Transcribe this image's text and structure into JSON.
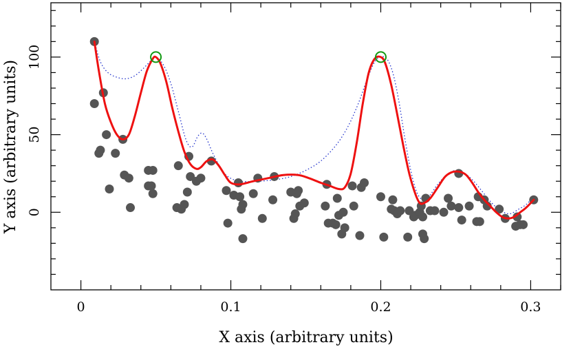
{
  "chart_data": {
    "type": "scatter",
    "title": "",
    "xlabel": "X axis (arbitrary units)",
    "ylabel": "Y axis (arbitrary units)",
    "xlim": [
      -0.02,
      0.32
    ],
    "ylim": [
      -50,
      135
    ],
    "xticks": [
      0,
      0.1,
      0.2,
      0.3
    ],
    "xtick_labels": [
      "0",
      "0.1",
      "0.2",
      "0.3"
    ],
    "yticks": [
      0,
      50,
      100
    ],
    "ytick_labels": [
      "0",
      "50",
      "100"
    ],
    "grid": false,
    "colors": {
      "points": "#555555",
      "fit_curve": "#ee1111",
      "dotted_curve": "#2233cc",
      "peak_markers": "#119911",
      "axes": "#000000"
    },
    "series": [
      {
        "type": "scatter",
        "points": [
          [
            0.009,
            110
          ],
          [
            0.009,
            70
          ],
          [
            0.012,
            38
          ],
          [
            0.013,
            40
          ],
          [
            0.015,
            77
          ],
          [
            0.017,
            50
          ],
          [
            0.019,
            15
          ],
          [
            0.023,
            38
          ],
          [
            0.028,
            47
          ],
          [
            0.029,
            24
          ],
          [
            0.032,
            22
          ],
          [
            0.033,
            3
          ],
          [
            0.045,
            27
          ],
          [
            0.045,
            17
          ],
          [
            0.047,
            17
          ],
          [
            0.048,
            12
          ],
          [
            0.048,
            27
          ],
          [
            0.064,
            3
          ],
          [
            0.065,
            30
          ],
          [
            0.067,
            2
          ],
          [
            0.069,
            5
          ],
          [
            0.071,
            13
          ],
          [
            0.072,
            36
          ],
          [
            0.073,
            23
          ],
          [
            0.077,
            20
          ],
          [
            0.08,
            22
          ],
          [
            0.087,
            33
          ],
          [
            0.097,
            14
          ],
          [
            0.098,
            -7
          ],
          [
            0.102,
            11
          ],
          [
            0.105,
            19
          ],
          [
            0.106,
            10
          ],
          [
            0.107,
            2
          ],
          [
            0.108,
            -17
          ],
          [
            0.108,
            5
          ],
          [
            0.115,
            12
          ],
          [
            0.118,
            22
          ],
          [
            0.121,
            -4
          ],
          [
            0.128,
            8
          ],
          [
            0.129,
            23
          ],
          [
            0.14,
            13
          ],
          [
            0.142,
            -4
          ],
          [
            0.143,
            -1
          ],
          [
            0.144,
            12
          ],
          [
            0.145,
            14
          ],
          [
            0.146,
            4
          ],
          [
            0.149,
            6
          ],
          [
            0.163,
            4
          ],
          [
            0.164,
            18
          ],
          [
            0.165,
            -7
          ],
          [
            0.168,
            -7
          ],
          [
            0.17,
            -8
          ],
          [
            0.171,
            9
          ],
          [
            0.172,
            -2
          ],
          [
            0.174,
            -14
          ],
          [
            0.175,
            0
          ],
          [
            0.176,
            -10
          ],
          [
            0.181,
            17
          ],
          [
            0.182,
            4
          ],
          [
            0.186,
            -15
          ],
          [
            0.187,
            16
          ],
          [
            0.189,
            19
          ],
          [
            0.2,
            10
          ],
          [
            0.202,
            -16
          ],
          [
            0.207,
            2
          ],
          [
            0.208,
            8
          ],
          [
            0.209,
            1
          ],
          [
            0.211,
            -1
          ],
          [
            0.213,
            1
          ],
          [
            0.218,
            -16
          ],
          [
            0.219,
            1
          ],
          [
            0.222,
            -3
          ],
          [
            0.223,
            -2
          ],
          [
            0.226,
            0
          ],
          [
            0.227,
            4
          ],
          [
            0.228,
            -14
          ],
          [
            0.228,
            -3
          ],
          [
            0.229,
            -17
          ],
          [
            0.23,
            9
          ],
          [
            0.233,
            1
          ],
          [
            0.236,
            1
          ],
          [
            0.242,
            0
          ],
          [
            0.245,
            9
          ],
          [
            0.247,
            4
          ],
          [
            0.252,
            25
          ],
          [
            0.252,
            3
          ],
          [
            0.254,
            -5
          ],
          [
            0.259,
            4
          ],
          [
            0.264,
            -6
          ],
          [
            0.265,
            10
          ],
          [
            0.266,
            -6
          ],
          [
            0.269,
            8
          ],
          [
            0.271,
            4
          ],
          [
            0.279,
            2
          ],
          [
            0.283,
            -4
          ],
          [
            0.29,
            -9
          ],
          [
            0.291,
            -3
          ],
          [
            0.293,
            -8
          ],
          [
            0.295,
            -8
          ],
          [
            0.302,
            8
          ]
        ]
      },
      {
        "type": "line",
        "style": "solid",
        "points": [
          [
            0.009,
            110
          ],
          [
            0.012,
            91
          ],
          [
            0.016,
            70
          ],
          [
            0.02,
            58
          ],
          [
            0.024,
            50
          ],
          [
            0.028,
            47
          ],
          [
            0.032,
            50
          ],
          [
            0.036,
            62
          ],
          [
            0.04,
            77
          ],
          [
            0.044,
            91
          ],
          [
            0.048,
            99
          ],
          [
            0.05,
            100
          ],
          [
            0.053,
            96
          ],
          [
            0.057,
            84
          ],
          [
            0.061,
            67
          ],
          [
            0.065,
            52
          ],
          [
            0.069,
            39
          ],
          [
            0.073,
            31
          ],
          [
            0.077,
            28
          ],
          [
            0.08,
            29
          ],
          [
            0.084,
            33
          ],
          [
            0.088,
            34
          ],
          [
            0.092,
            30
          ],
          [
            0.096,
            24
          ],
          [
            0.1,
            19
          ],
          [
            0.106,
            18
          ],
          [
            0.115,
            20
          ],
          [
            0.125,
            22
          ],
          [
            0.135,
            24
          ],
          [
            0.145,
            24
          ],
          [
            0.152,
            22
          ],
          [
            0.16,
            19
          ],
          [
            0.166,
            17
          ],
          [
            0.172,
            15
          ],
          [
            0.176,
            16
          ],
          [
            0.18,
            25
          ],
          [
            0.184,
            45
          ],
          [
            0.188,
            70
          ],
          [
            0.192,
            90
          ],
          [
            0.196,
            99
          ],
          [
            0.2,
            100
          ],
          [
            0.203,
            96
          ],
          [
            0.207,
            82
          ],
          [
            0.211,
            63
          ],
          [
            0.215,
            43
          ],
          [
            0.219,
            25
          ],
          [
            0.223,
            12
          ],
          [
            0.226,
            6
          ],
          [
            0.229,
            6
          ],
          [
            0.233,
            9
          ],
          [
            0.238,
            16
          ],
          [
            0.243,
            23
          ],
          [
            0.248,
            26
          ],
          [
            0.253,
            26
          ],
          [
            0.257,
            24
          ],
          [
            0.261,
            19
          ],
          [
            0.265,
            13
          ],
          [
            0.269,
            8
          ],
          [
            0.273,
            4
          ],
          [
            0.277,
            0
          ],
          [
            0.281,
            -3
          ],
          [
            0.285,
            -4
          ],
          [
            0.289,
            -3
          ],
          [
            0.293,
            0
          ],
          [
            0.297,
            3
          ],
          [
            0.302,
            8
          ]
        ]
      },
      {
        "type": "line",
        "style": "dotted",
        "points": [
          [
            0.009,
            110
          ],
          [
            0.013,
            97
          ],
          [
            0.018,
            90
          ],
          [
            0.024,
            87
          ],
          [
            0.03,
            86
          ],
          [
            0.036,
            88
          ],
          [
            0.042,
            93
          ],
          [
            0.047,
            98
          ],
          [
            0.05,
            100
          ],
          [
            0.055,
            95
          ],
          [
            0.06,
            83
          ],
          [
            0.065,
            65
          ],
          [
            0.07,
            47
          ],
          [
            0.074,
            42
          ],
          [
            0.078,
            49
          ],
          [
            0.081,
            51
          ],
          [
            0.084,
            47
          ],
          [
            0.088,
            38
          ],
          [
            0.093,
            29
          ],
          [
            0.098,
            23
          ],
          [
            0.106,
            20
          ],
          [
            0.118,
            20
          ],
          [
            0.13,
            21
          ],
          [
            0.14,
            23
          ],
          [
            0.15,
            27
          ],
          [
            0.16,
            33
          ],
          [
            0.17,
            43
          ],
          [
            0.178,
            55
          ],
          [
            0.185,
            70
          ],
          [
            0.191,
            86
          ],
          [
            0.196,
            97
          ],
          [
            0.2,
            100
          ],
          [
            0.204,
            99
          ],
          [
            0.208,
            90
          ],
          [
            0.212,
            72
          ],
          [
            0.216,
            48
          ],
          [
            0.22,
            27
          ],
          [
            0.224,
            13
          ],
          [
            0.228,
            8
          ],
          [
            0.232,
            10
          ],
          [
            0.238,
            18
          ],
          [
            0.244,
            24
          ],
          [
            0.25,
            27
          ],
          [
            0.256,
            25
          ],
          [
            0.262,
            20
          ],
          [
            0.268,
            13
          ],
          [
            0.274,
            6
          ],
          [
            0.28,
            1
          ],
          [
            0.286,
            -1
          ],
          [
            0.292,
            2
          ],
          [
            0.297,
            5
          ],
          [
            0.302,
            10
          ]
        ]
      },
      {
        "type": "scatter",
        "marker": "open-circle",
        "points": [
          [
            0.05,
            100
          ],
          [
            0.2,
            100
          ]
        ]
      }
    ]
  }
}
